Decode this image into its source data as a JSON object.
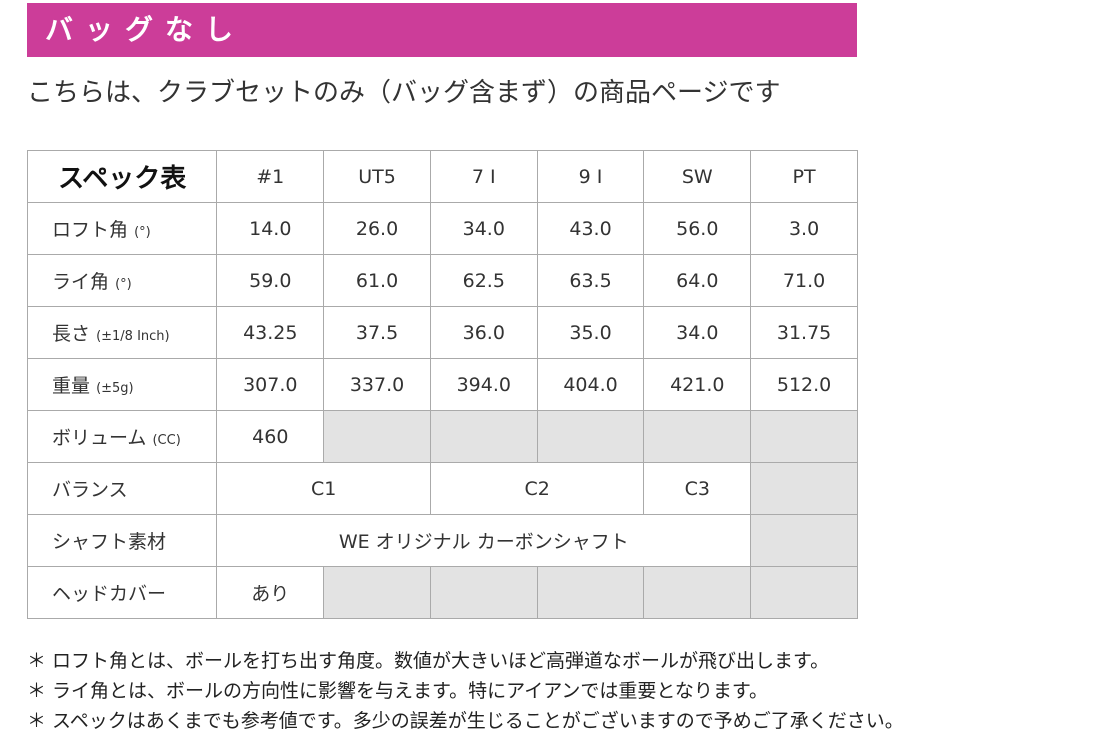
{
  "banner": {
    "title": "バッグなし",
    "color": "#cc3d99"
  },
  "intro": "こちらは、クラブセットのみ（バッグ含まず）の商品ページです",
  "table": {
    "title": "スペック表",
    "columns": [
      "#1",
      "UT5",
      "7 I",
      "9 I",
      "SW",
      "PT"
    ],
    "rows": [
      {
        "label": "ロフト角",
        "unit": "(°)",
        "values": [
          "14.0",
          "26.0",
          "34.0",
          "43.0",
          "56.0",
          "3.0"
        ]
      },
      {
        "label": "ライ角",
        "unit": "(°)",
        "values": [
          "59.0",
          "61.0",
          "62.5",
          "63.5",
          "64.0",
          "71.0"
        ]
      },
      {
        "label": "長さ",
        "unit": "(±1/8 Inch)",
        "values": [
          "43.25",
          "37.5",
          "36.0",
          "35.0",
          "34.0",
          "31.75"
        ]
      },
      {
        "label": "重量",
        "unit": "(±5g)",
        "values": [
          "307.0",
          "337.0",
          "394.0",
          "404.0",
          "421.0",
          "512.0"
        ]
      }
    ],
    "volume": {
      "label": "ボリューム",
      "unit": "(CC)",
      "value": "460"
    },
    "balance": {
      "label": "バランス",
      "values": [
        "C1",
        "C2",
        "C3"
      ]
    },
    "shaft": {
      "label": "シャフト素材",
      "value": "WE オリジナル カーボンシャフト"
    },
    "headcover": {
      "label": "ヘッドカバー",
      "value": "あり"
    }
  },
  "notes": [
    "＊ ロフト角とは、ボールを打ち出す角度。数値が大きいほど高弾道なボールが飛び出します。",
    "＊ ライ角とは、ボールの方向性に影響を与えます。特にアイアンでは重要となります。",
    "＊ スペックはあくまでも参考値です。多少の誤差が生じることがございますので予めご了承ください。"
  ]
}
